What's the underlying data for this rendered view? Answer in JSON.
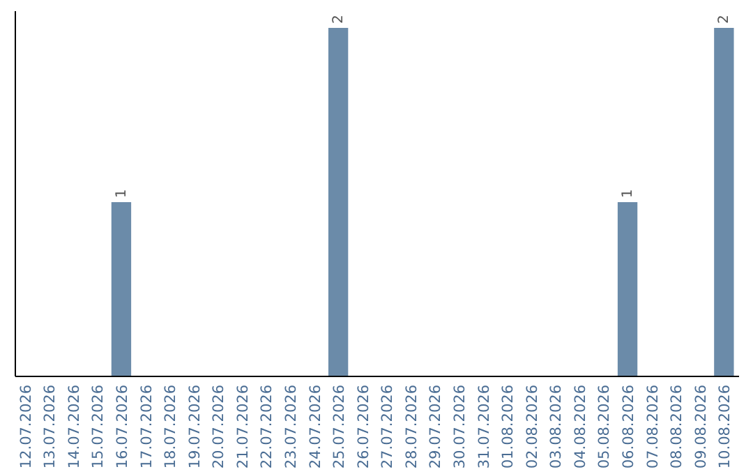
{
  "chart_data": {
    "type": "bar",
    "categories": [
      "12.07.2026",
      "13.07.2026",
      "14.07.2026",
      "15.07.2026",
      "16.07.2026",
      "17.07.2026",
      "18.07.2026",
      "19.07.2026",
      "20.07.2026",
      "21.07.2026",
      "22.07.2026",
      "23.07.2026",
      "24.07.2026",
      "25.07.2026",
      "26.07.2026",
      "27.07.2026",
      "28.07.2026",
      "29.07.2026",
      "30.07.2026",
      "31.07.2026",
      "01.08.2026",
      "02.08.2026",
      "03.08.2026",
      "04.08.2026",
      "05.08.2026",
      "06.08.2026",
      "07.08.2026",
      "08.08.2026",
      "09.08.2026",
      "10.08.2026"
    ],
    "values": [
      0,
      0,
      0,
      0,
      1,
      0,
      0,
      0,
      0,
      0,
      0,
      0,
      0,
      2,
      0,
      0,
      0,
      0,
      0,
      0,
      0,
      0,
      0,
      0,
      0,
      1,
      0,
      0,
      0,
      2
    ],
    "value_labels": [
      null,
      null,
      null,
      null,
      "1",
      null,
      null,
      null,
      null,
      null,
      null,
      null,
      null,
      "2",
      null,
      null,
      null,
      null,
      null,
      null,
      null,
      null,
      null,
      null,
      null,
      "1",
      null,
      null,
      null,
      "2"
    ],
    "color": "#6b8ba9",
    "tick_labels": "x"
  }
}
